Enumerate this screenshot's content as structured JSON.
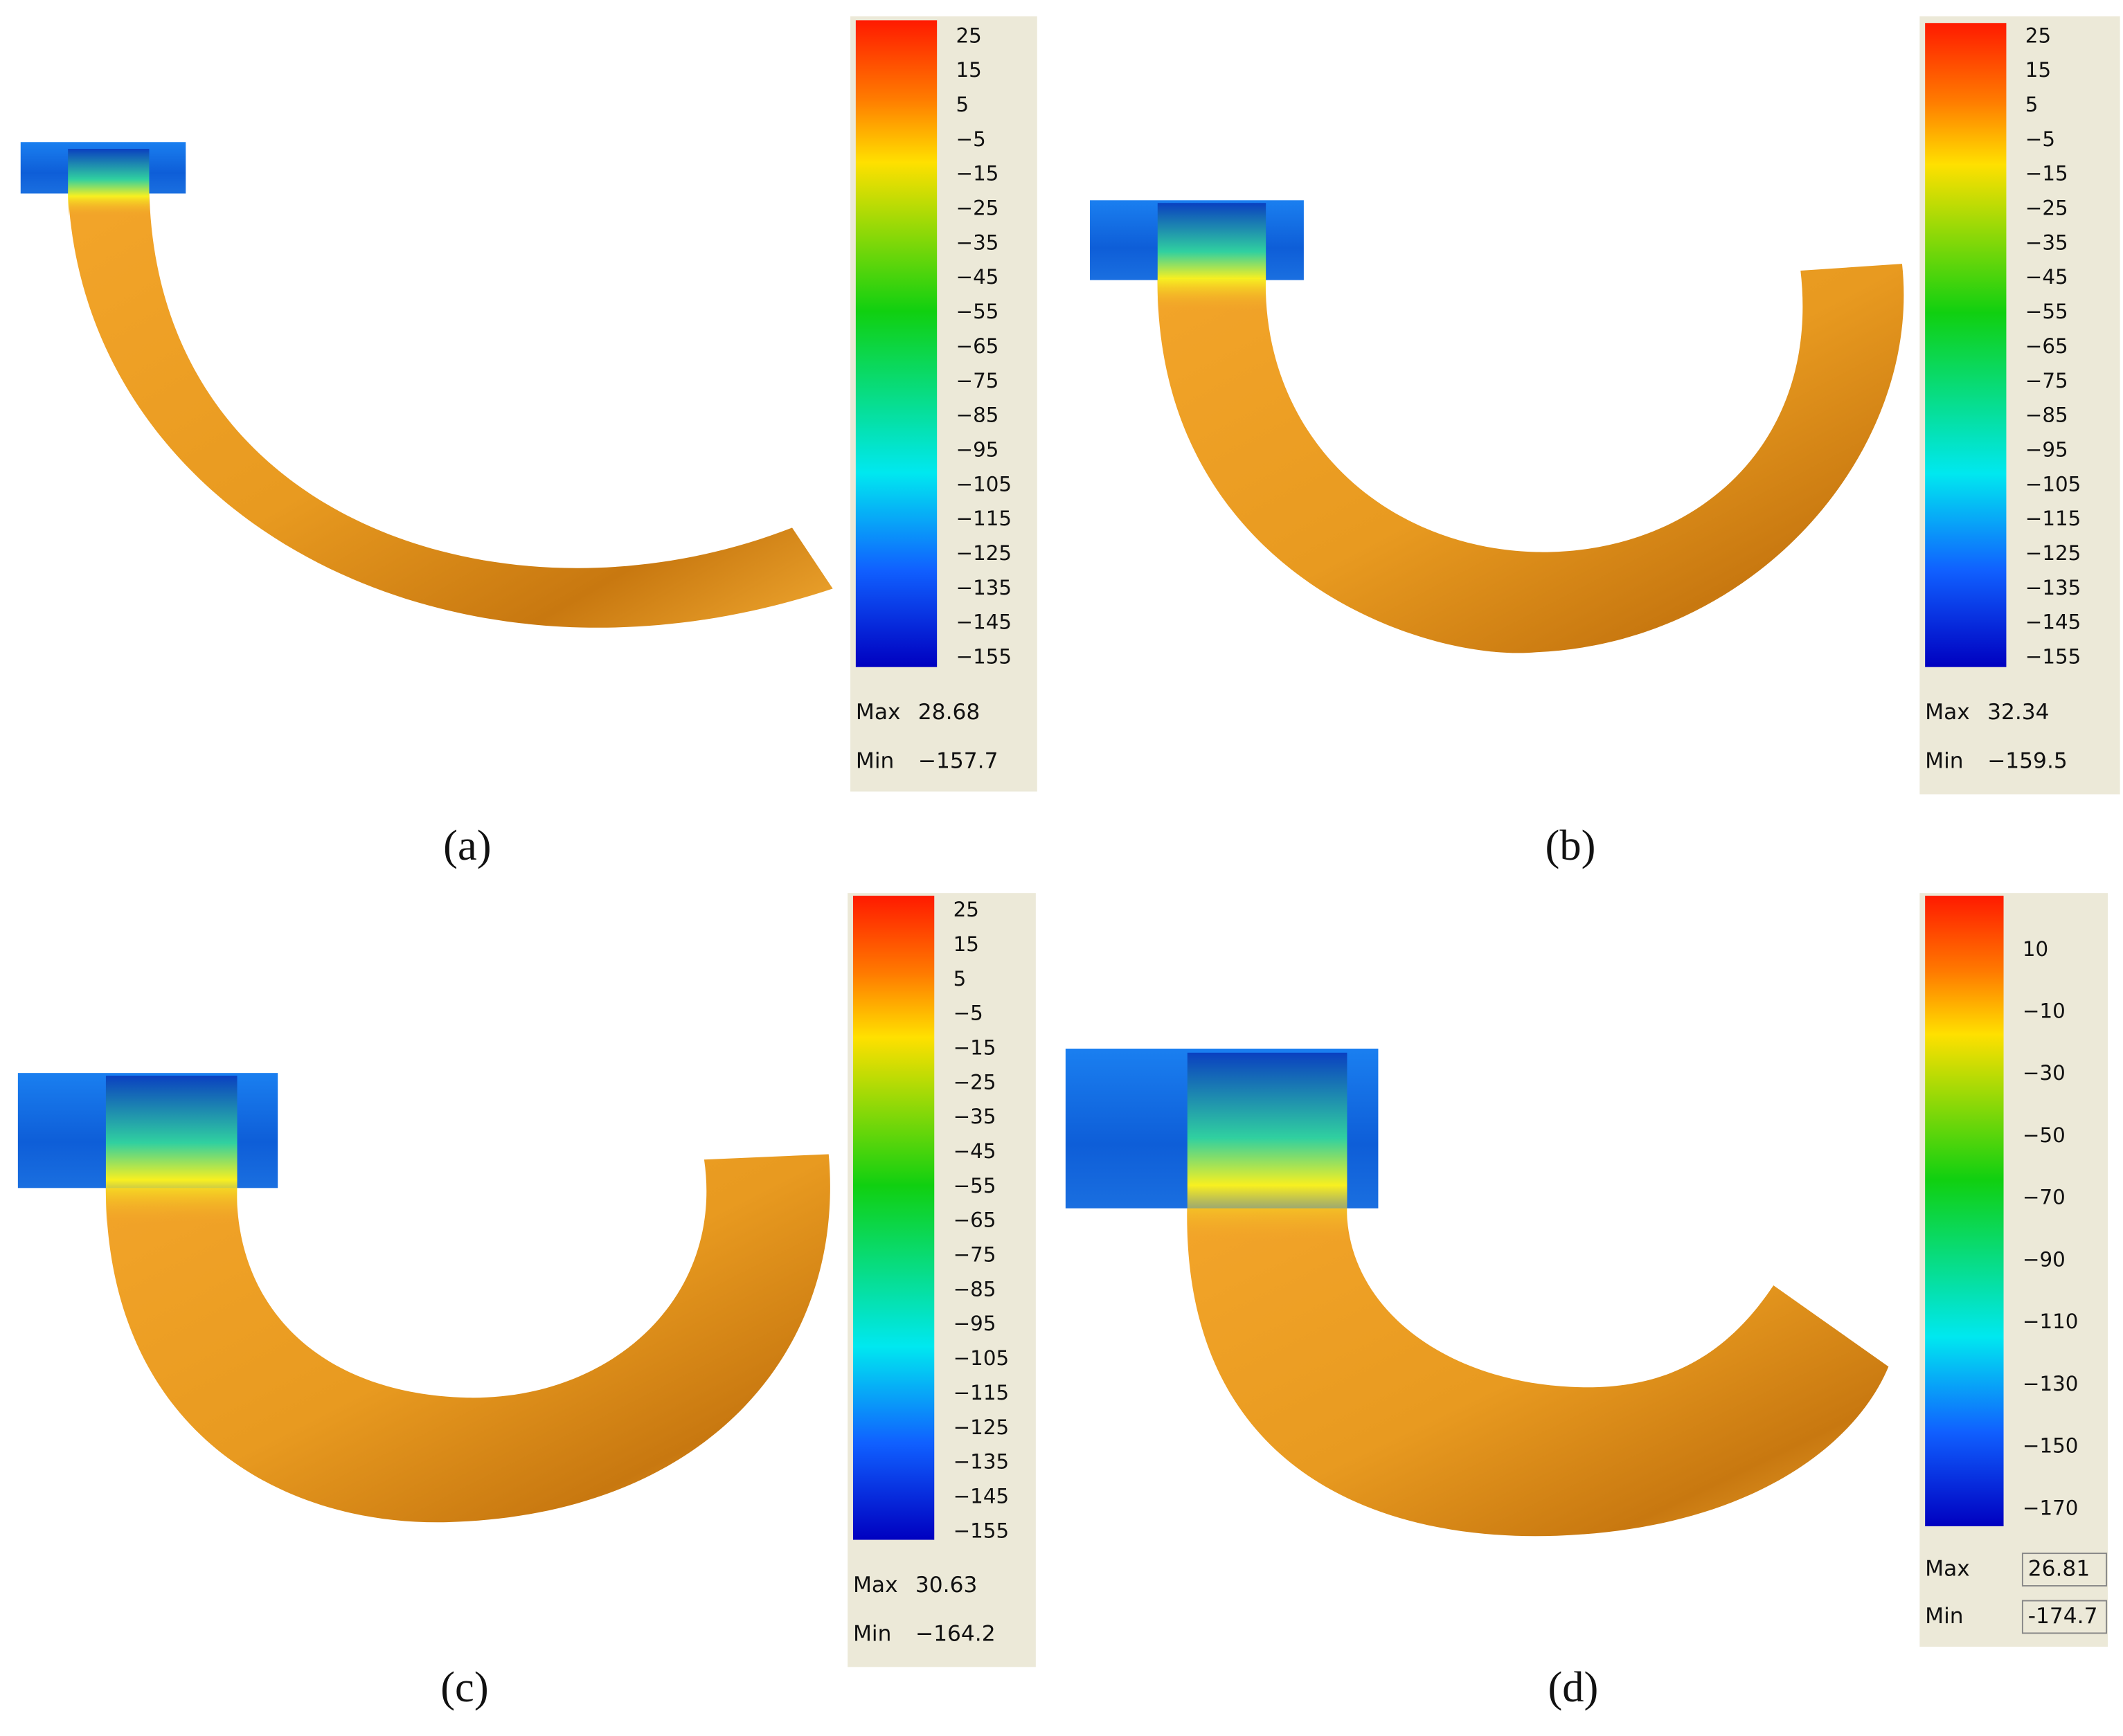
{
  "panels": [
    {
      "label": "(a)",
      "legend": {
        "ticks": [
          "25",
          "15",
          "5",
          "−5",
          "−15",
          "−25",
          "−35",
          "−45",
          "−55",
          "−65",
          "−75",
          "−85",
          "−95",
          "−105",
          "−115",
          "−125",
          "−135",
          "−145",
          "−155"
        ],
        "max_label": "Max",
        "max_value": "28.68",
        "min_label": "Min",
        "min_value": "−157.7"
      }
    },
    {
      "label": "(b)",
      "legend": {
        "ticks": [
          "25",
          "15",
          "5",
          "−5",
          "−15",
          "−25",
          "−35",
          "−45",
          "−55",
          "−65",
          "−75",
          "−85",
          "−95",
          "−105",
          "−115",
          "−125",
          "−135",
          "−145",
          "−155"
        ],
        "max_label": "Max",
        "max_value": "32.34",
        "min_label": "Min",
        "min_value": "−159.5"
      }
    },
    {
      "label": "(c)",
      "legend": {
        "ticks": [
          "25",
          "15",
          "5",
          "−5",
          "−15",
          "−25",
          "−35",
          "−45",
          "−55",
          "−65",
          "−75",
          "−85",
          "−95",
          "−105",
          "−115",
          "−125",
          "−135",
          "−145",
          "−155"
        ],
        "max_label": "Max",
        "max_value": "30.63",
        "min_label": "Min",
        "min_value": "−164.2"
      }
    },
    {
      "label": "(d)",
      "legend": {
        "ticks": [
          "10",
          "−10",
          "−30",
          "−50",
          "−70",
          "−90",
          "−110",
          "−130",
          "−150",
          "−170"
        ],
        "max_label": "Max",
        "max_value": "26.81",
        "min_label": "Min",
        "min_value": "-174.7"
      }
    }
  ]
}
